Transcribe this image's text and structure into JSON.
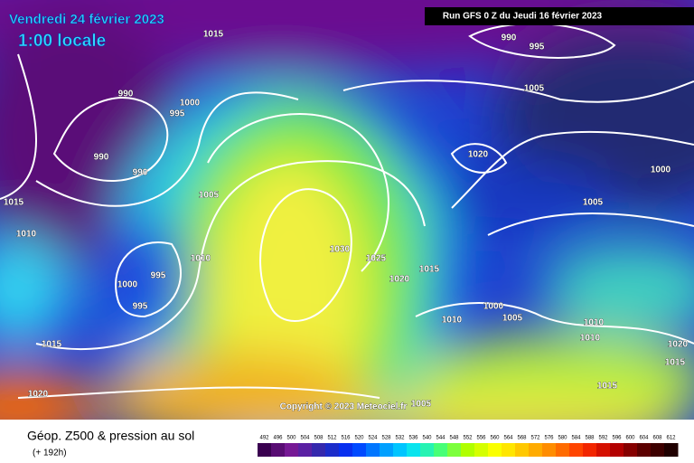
{
  "header": {
    "date": "Vendredi 24 février 2023",
    "local_time": "1:00 locale",
    "run": "Run GFS 0 Z du Jeudi 16 février 2023"
  },
  "copyright": "Copyright © 2023 Meteociel.fr",
  "footer": {
    "title": "Géop. Z500 & pression au sol",
    "lead": "(+ 192h)"
  },
  "isobar_labels": [
    "1015",
    "990",
    "995",
    "1005",
    "990",
    "1000",
    "995",
    "990",
    "990",
    "1020",
    "1000",
    "1005",
    "1005",
    "1015",
    "1010",
    "1030",
    "1025",
    "1010",
    "995",
    "1000",
    "1015",
    "1020",
    "995",
    "1000",
    "1005",
    "1010",
    "1010",
    "1010",
    "1015",
    "1020",
    "1015",
    "1015",
    "1020",
    "1005"
  ],
  "colorbar": {
    "labels": [
      492,
      496,
      500,
      504,
      508,
      512,
      516,
      520,
      524,
      528,
      532,
      536,
      540,
      544,
      548,
      552,
      556,
      560,
      564,
      568,
      572,
      576,
      580,
      584,
      588,
      592,
      596,
      600,
      604,
      608,
      612
    ]
  }
}
